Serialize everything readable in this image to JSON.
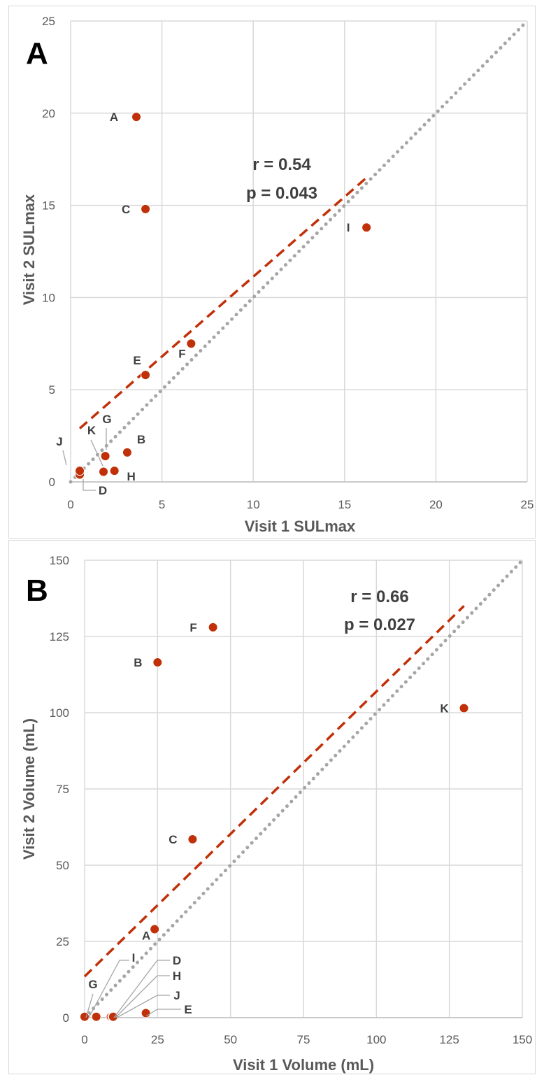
{
  "colors": {
    "point": "#c0310a",
    "point_edge": "#a02808",
    "trend": "#c0310a",
    "identity": "#a6a6a6",
    "grid": "#d9d9d9",
    "text": "#595959"
  },
  "chart_data": [
    {
      "type": "scatter",
      "panel_label": "A",
      "xlabel": "Visit 1 SULmax",
      "ylabel": "Visit 2 SULmax",
      "xlim": [
        0,
        25
      ],
      "ylim": [
        0,
        25
      ],
      "xticks": [
        0,
        5,
        10,
        15,
        20,
        25
      ],
      "yticks": [
        0,
        5,
        10,
        15,
        20,
        25
      ],
      "xtick_labels": [
        "0",
        "5",
        "10",
        "15",
        "20",
        "25"
      ],
      "ytick_labels": [
        "0",
        "5",
        "10",
        "15",
        "20",
        "25"
      ],
      "grid": true,
      "points": [
        {
          "label": "A",
          "x": 3.6,
          "y": 19.8
        },
        {
          "label": "B",
          "x": 3.1,
          "y": 1.6
        },
        {
          "label": "C",
          "x": 4.1,
          "y": 14.8
        },
        {
          "label": "D",
          "x": 0.5,
          "y": 0.4
        },
        {
          "label": "E",
          "x": 4.1,
          "y": 5.8
        },
        {
          "label": "F",
          "x": 6.6,
          "y": 7.5
        },
        {
          "label": "G",
          "x": 1.9,
          "y": 1.4
        },
        {
          "label": "H",
          "x": 2.4,
          "y": 0.6
        },
        {
          "label": "I",
          "x": 16.2,
          "y": 13.8
        },
        {
          "label": "J",
          "x": 0.5,
          "y": 0.6
        },
        {
          "label": "K",
          "x": 1.8,
          "y": 0.55
        }
      ],
      "identity_line": {
        "x": [
          0,
          25
        ],
        "y": [
          0,
          25
        ]
      },
      "trend_line": {
        "x": [
          0.5,
          16.2
        ],
        "y": [
          2.9,
          16.5
        ]
      },
      "stats": {
        "r": "r = 0.54",
        "p": "p = 0.043"
      }
    },
    {
      "type": "scatter",
      "panel_label": "B",
      "xlabel": "Visit 1 Volume (mL)",
      "ylabel": "Visit 2 Volume (mL)",
      "xlim": [
        0,
        150
      ],
      "ylim": [
        0,
        150
      ],
      "xticks": [
        0,
        25,
        50,
        75,
        100,
        125,
        150
      ],
      "yticks": [
        0,
        25,
        50,
        75,
        100,
        125,
        150
      ],
      "xtick_labels": [
        "0",
        "25",
        "50",
        "75",
        "100",
        "125",
        "150"
      ],
      "ytick_labels": [
        "0",
        "25",
        "50",
        "75",
        "100",
        "125",
        "150"
      ],
      "grid": true,
      "points": [
        {
          "label": "A",
          "x": 24,
          "y": 29
        },
        {
          "label": "B",
          "x": 25,
          "y": 116.5
        },
        {
          "label": "C",
          "x": 37,
          "y": 58.5
        },
        {
          "label": "D",
          "x": 9,
          "y": 0.3
        },
        {
          "label": "E",
          "x": 21,
          "y": 1.5
        },
        {
          "label": "F",
          "x": 44,
          "y": 128
        },
        {
          "label": "G",
          "x": 0,
          "y": 0.3
        },
        {
          "label": "H",
          "x": 9.5,
          "y": 0.3
        },
        {
          "label": "I",
          "x": 4,
          "y": 0.3
        },
        {
          "label": "J",
          "x": 9.8,
          "y": 0.3
        },
        {
          "label": "K",
          "x": 130,
          "y": 101.5
        }
      ],
      "identity_line": {
        "x": [
          0,
          150
        ],
        "y": [
          0,
          150
        ]
      },
      "trend_line": {
        "x": [
          0,
          130
        ],
        "y": [
          13.5,
          135
        ]
      },
      "stats": {
        "r": "r = 0.66",
        "p": "p = 0.027"
      }
    }
  ]
}
